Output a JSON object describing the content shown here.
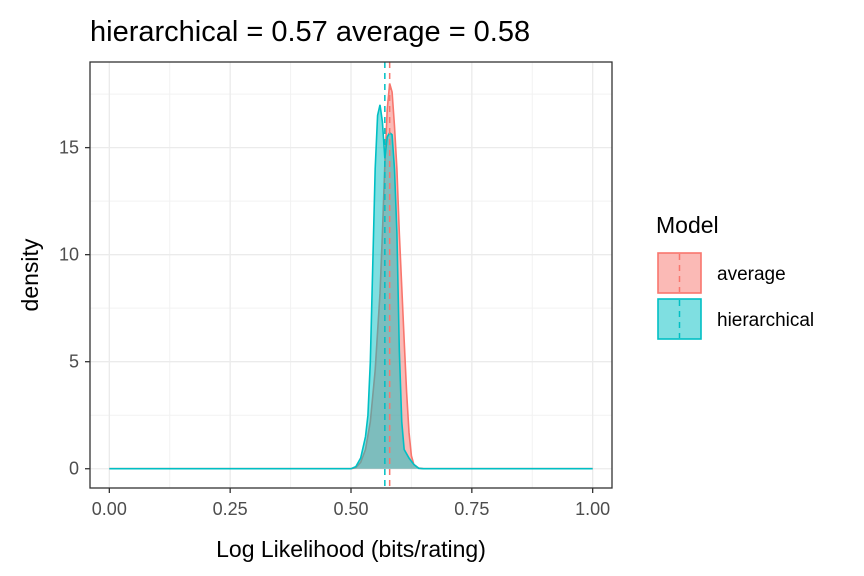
{
  "chart_data": {
    "type": "area",
    "title": "hierarchical = 0.57 average = 0.58",
    "xlabel": "Log Likelihood (bits/rating)",
    "ylabel": "density",
    "xlim": [
      -0.04,
      1.04
    ],
    "ylim": [
      -0.9,
      19.0
    ],
    "xticks": [
      0.0,
      0.25,
      0.5,
      0.75,
      1.0
    ],
    "xtick_labels": [
      "0.00",
      "0.25",
      "0.50",
      "0.75",
      "1.00"
    ],
    "yticks": [
      0,
      5,
      10,
      15
    ],
    "ytick_labels": [
      "0",
      "5",
      "10",
      "15"
    ],
    "grid": true,
    "legend": {
      "title": "Model",
      "placement": "right"
    },
    "series": [
      {
        "name": "average",
        "fill_color": "#F8766D",
        "line_color": "#F8766D",
        "mean": 0.58,
        "points": [
          [
            0.0,
            0
          ],
          [
            0.5,
            0
          ],
          [
            0.51,
            0.05
          ],
          [
            0.52,
            0.3
          ],
          [
            0.53,
            0.9
          ],
          [
            0.54,
            2.2
          ],
          [
            0.55,
            4.6
          ],
          [
            0.56,
            8.2
          ],
          [
            0.565,
            11.0
          ],
          [
            0.57,
            14.2
          ],
          [
            0.575,
            16.8
          ],
          [
            0.58,
            18.0
          ],
          [
            0.585,
            17.6
          ],
          [
            0.59,
            16.0
          ],
          [
            0.595,
            14.0
          ],
          [
            0.6,
            11.0
          ],
          [
            0.605,
            8.5
          ],
          [
            0.61,
            6.0
          ],
          [
            0.615,
            3.6
          ],
          [
            0.62,
            1.7
          ],
          [
            0.625,
            0.6
          ],
          [
            0.63,
            0.2
          ],
          [
            0.64,
            0.03
          ],
          [
            0.65,
            0
          ],
          [
            1.0,
            0
          ]
        ]
      },
      {
        "name": "hierarchical",
        "fill_color": "#00BFC4",
        "line_color": "#00BFC4",
        "mean": 0.57,
        "points": [
          [
            0.0,
            0
          ],
          [
            0.5,
            0
          ],
          [
            0.51,
            0.1
          ],
          [
            0.52,
            0.5
          ],
          [
            0.53,
            1.5
          ],
          [
            0.535,
            2.5
          ],
          [
            0.54,
            5.0
          ],
          [
            0.545,
            9.5
          ],
          [
            0.55,
            14.0
          ],
          [
            0.555,
            16.5
          ],
          [
            0.56,
            17.0
          ],
          [
            0.565,
            16.2
          ],
          [
            0.57,
            14.5
          ],
          [
            0.575,
            15.5
          ],
          [
            0.58,
            15.7
          ],
          [
            0.585,
            15.6
          ],
          [
            0.59,
            14.0
          ],
          [
            0.595,
            11.0
          ],
          [
            0.6,
            5.5
          ],
          [
            0.605,
            2.2
          ],
          [
            0.61,
            0.9
          ],
          [
            0.62,
            0.5
          ],
          [
            0.63,
            0.2
          ],
          [
            0.64,
            0.02
          ],
          [
            0.65,
            0
          ],
          [
            1.0,
            0
          ]
        ]
      }
    ]
  }
}
